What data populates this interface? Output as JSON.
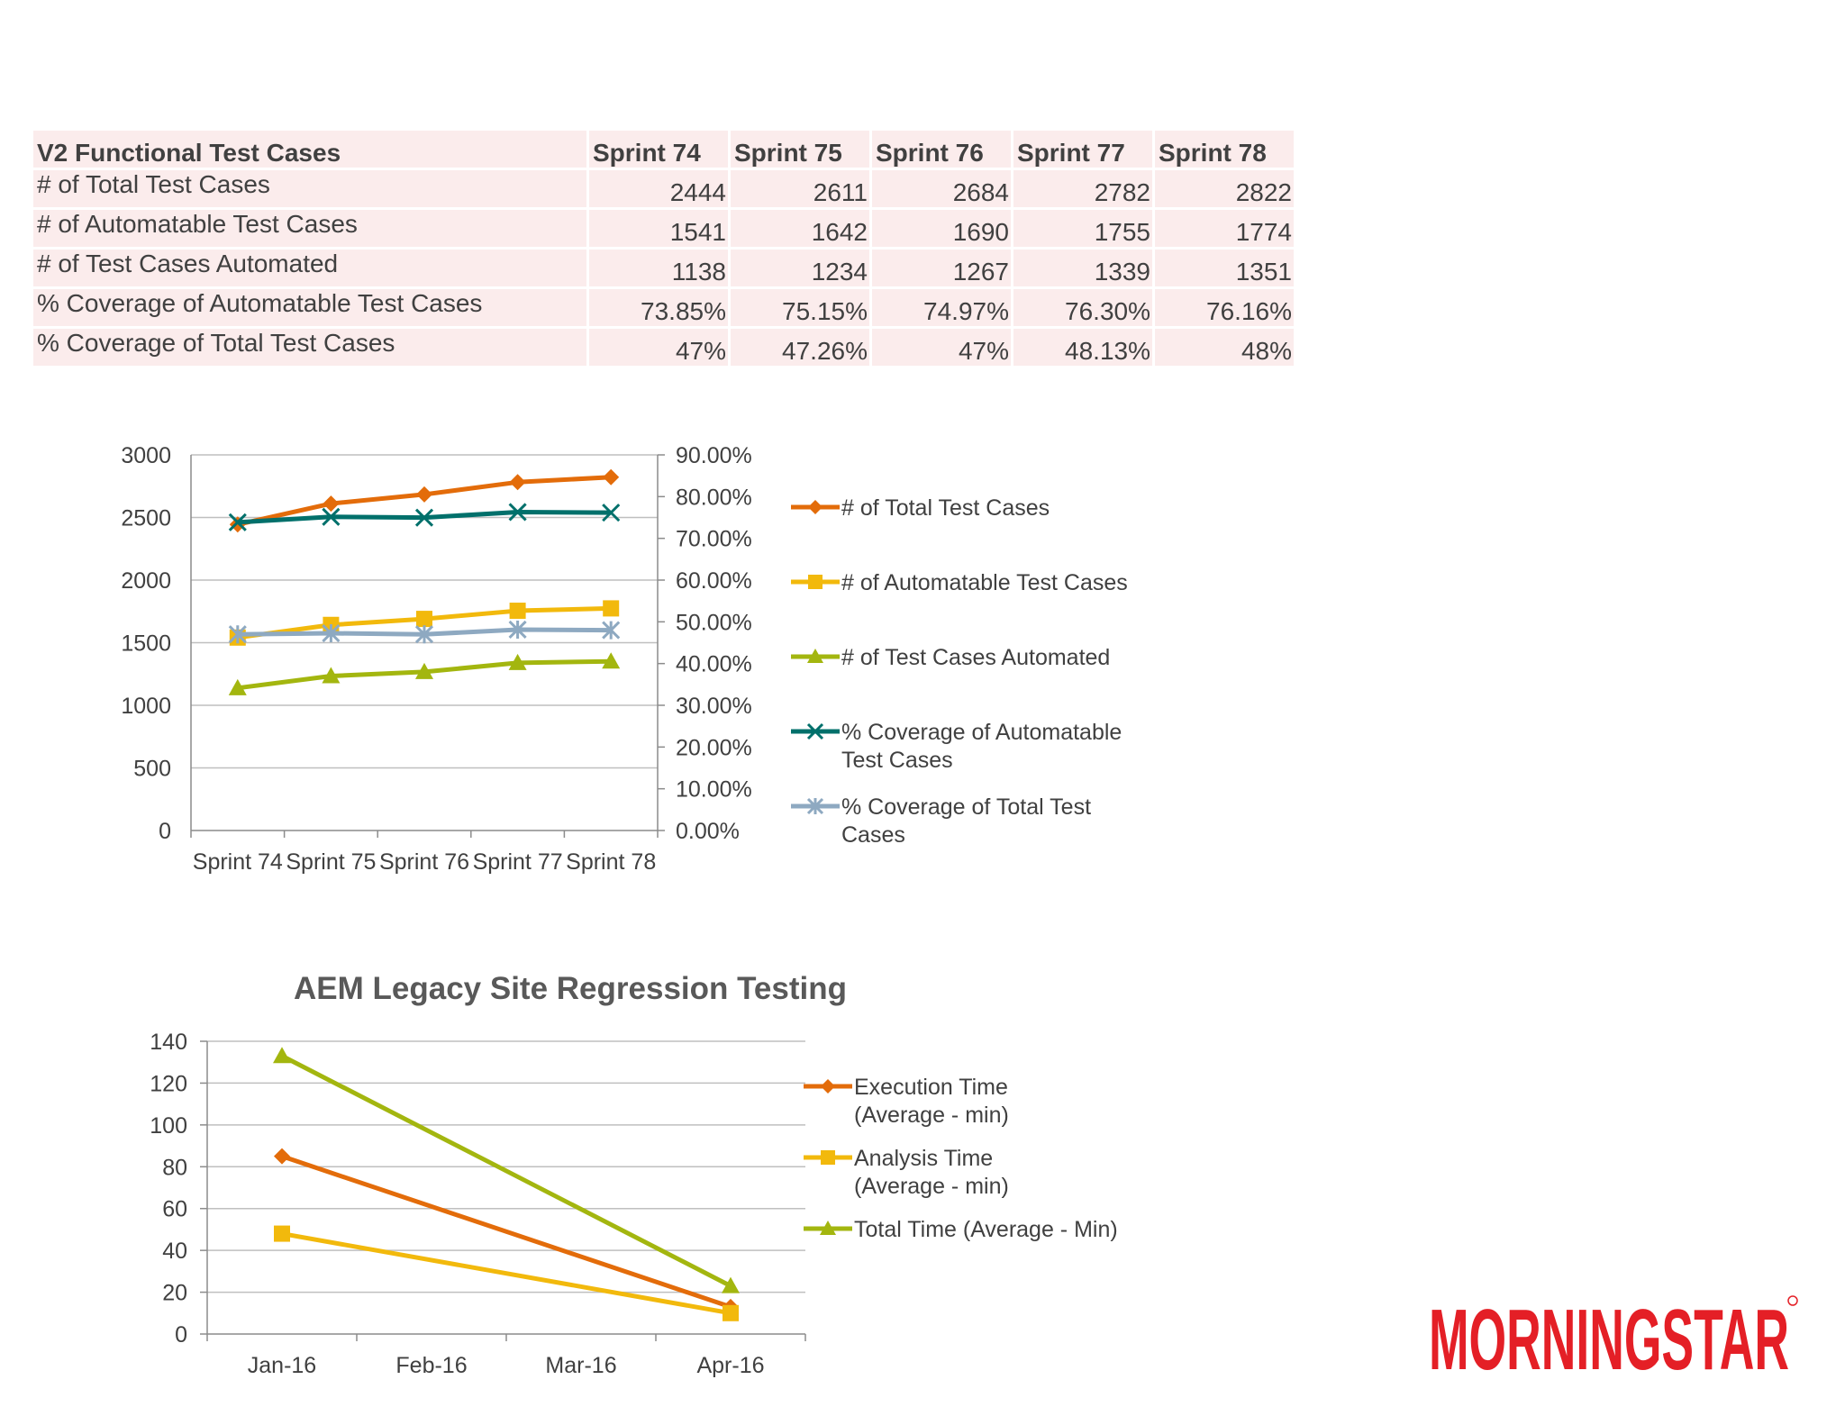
{
  "table": {
    "header": [
      "V2 Functional Test Cases",
      "Sprint 74",
      "Sprint 75",
      "Sprint 76",
      "Sprint 77",
      "Sprint 78"
    ],
    "rows": [
      {
        "label": "# of Total Test Cases",
        "values": [
          "2444",
          "2611",
          "2684",
          "2782",
          "2822"
        ]
      },
      {
        "label": "# of Automatable Test Cases",
        "values": [
          "1541",
          "1642",
          "1690",
          "1755",
          "1774"
        ]
      },
      {
        "label": "# of Test Cases Automated",
        "values": [
          "1138",
          "1234",
          "1267",
          "1339",
          "1351"
        ]
      },
      {
        "label": "% Coverage of Automatable Test Cases",
        "values": [
          "73.85%",
          "75.15%",
          "74.97%",
          "76.30%",
          "76.16%"
        ]
      },
      {
        "label": "% Coverage of Total Test Cases",
        "values": [
          "47%",
          "47.26%",
          "47%",
          "48.13%",
          "48%"
        ]
      }
    ]
  },
  "chart_data": [
    {
      "type": "line",
      "title": "",
      "categories": [
        "Sprint 74",
        "Sprint 75",
        "Sprint 76",
        "Sprint 77",
        "Sprint 78"
      ],
      "y_left": {
        "ylim": [
          0,
          3000
        ],
        "ticks": [
          "0",
          "500",
          "1000",
          "1500",
          "2000",
          "2500",
          "3000"
        ]
      },
      "y_right": {
        "ylim": [
          0,
          0.9
        ],
        "ticks": [
          "0.00%",
          "10.00%",
          "20.00%",
          "30.00%",
          "40.00%",
          "50.00%",
          "60.00%",
          "70.00%",
          "80.00%",
          "90.00%"
        ]
      },
      "legend_position": "right",
      "series": [
        {
          "name": "# of Total Test Cases",
          "axis": "left",
          "marker": "diamond",
          "color": "#e36c0a",
          "values": [
            2444,
            2611,
            2684,
            2782,
            2822
          ]
        },
        {
          "name": "# of Automatable Test Cases",
          "axis": "left",
          "marker": "square",
          "color": "#f2b90c",
          "values": [
            1541,
            1642,
            1690,
            1755,
            1774
          ]
        },
        {
          "name": "# of Test Cases Automated",
          "axis": "left",
          "marker": "triangle",
          "color": "#a3b60f",
          "values": [
            1138,
            1234,
            1267,
            1339,
            1351
          ]
        },
        {
          "name": "% Coverage of Automatable Test Cases",
          "axis": "right",
          "marker": "x",
          "color": "#00706b",
          "values": [
            0.7385,
            0.7515,
            0.7497,
            0.763,
            0.7616
          ]
        },
        {
          "name": "% Coverage of Total Test Cases",
          "axis": "right",
          "marker": "star",
          "color": "#8ea9c1",
          "values": [
            0.47,
            0.4726,
            0.47,
            0.4813,
            0.48
          ]
        }
      ]
    },
    {
      "type": "line",
      "title": "AEM Legacy Site Regression Testing",
      "categories": [
        "Jan-16",
        "Feb-16",
        "Mar-16",
        "Apr-16"
      ],
      "ylim": [
        0,
        140
      ],
      "y_ticks": [
        "0",
        "20",
        "40",
        "60",
        "80",
        "100",
        "120",
        "140"
      ],
      "legend_position": "right",
      "series": [
        {
          "name": "Execution Time (Average - min)",
          "legend_lines": [
            "Execution Time",
            "(Average - min)"
          ],
          "marker": "diamond",
          "color": "#e36c0a",
          "points": [
            {
              "category": "Jan-16",
              "value": 85
            },
            {
              "category": "Apr-16",
              "value": 13
            }
          ]
        },
        {
          "name": "Analysis Time (Average - min)",
          "legend_lines": [
            "Analysis Time",
            "(Average - min)"
          ],
          "marker": "square",
          "color": "#f2b90c",
          "points": [
            {
              "category": "Jan-16",
              "value": 48
            },
            {
              "category": "Apr-16",
              "value": 10
            }
          ]
        },
        {
          "name": "Total Time (Average - Min)",
          "legend_lines": [
            "Total Time (Average - Min)"
          ],
          "marker": "triangle",
          "color": "#a3b60f",
          "points": [
            {
              "category": "Jan-16",
              "value": 133
            },
            {
              "category": "Apr-16",
              "value": 23
            }
          ]
        }
      ]
    }
  ],
  "legend1_lines": [
    [
      "# of Total Test Cases"
    ],
    [
      "# of Automatable Test Cases"
    ],
    [
      "# of Test Cases Automated"
    ],
    [
      "% Coverage of Automatable",
      "Test Cases"
    ],
    [
      "% Coverage of Total Test",
      "Cases"
    ]
  ],
  "logo": {
    "text": "MORNINGSTAR",
    "color": "#e41f26"
  }
}
